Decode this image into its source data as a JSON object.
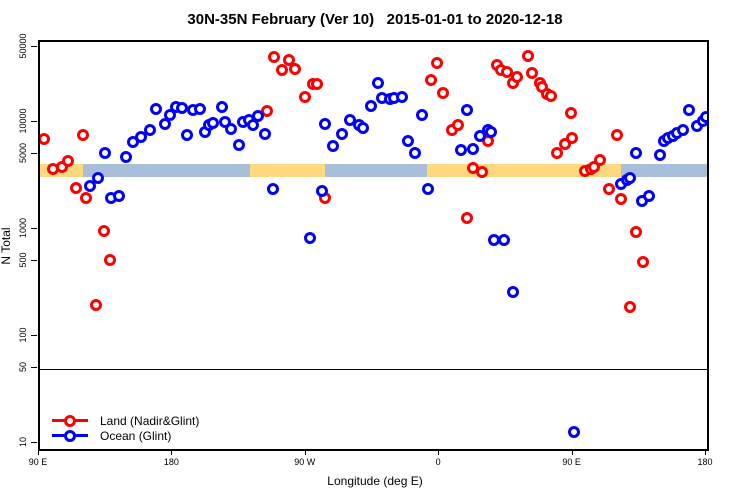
{
  "title": "30N-35N February (Ver 10)   2015-01-01 to 2020-12-18",
  "axes": {
    "x": {
      "label": "Longitude (deg E)",
      "range_deg": [
        90,
        540
      ],
      "note": "longitude axis starts at 90E and wraps eastward past 180, 90W, 0 to 180 again",
      "ticks": [
        {
          "deg": 90,
          "label": "90 E"
        },
        {
          "deg": 180,
          "label": "180"
        },
        {
          "deg": 270,
          "label": "90 W"
        },
        {
          "deg": 360,
          "label": "0"
        },
        {
          "deg": 450,
          "label": "90 E"
        },
        {
          "deg": 540,
          "label": "180"
        }
      ]
    },
    "y": {
      "label": "N Total",
      "scale": "log",
      "range": [
        9,
        57000
      ],
      "ticks": [
        {
          "value": 50000,
          "label": "50000"
        },
        {
          "value": 10000,
          "label": "10000"
        },
        {
          "value": 5000,
          "label": "5000"
        },
        {
          "value": 1000,
          "label": "1000"
        },
        {
          "value": 500,
          "label": "500"
        },
        {
          "value": 100,
          "label": "100"
        },
        {
          "value": 50,
          "label": "50"
        },
        {
          "value": 10,
          "label": "10"
        }
      ]
    }
  },
  "legend": {
    "items": [
      {
        "label": "Land (Nadir&Glint)",
        "color": "#FF0000"
      },
      {
        "label": "Ocean (Glint)",
        "color": "#0000FF"
      }
    ]
  },
  "colors": {
    "land_series": "#FF0000",
    "ocean_series": "#0000FF",
    "land_band": "#FFD97F",
    "ocean_band": "#A9BFD9",
    "reference_line": "#000000"
  },
  "chart_data": {
    "type": "scatter",
    "title": "30N-35N February (Ver 10)   2015-01-01 to 2020-12-18",
    "xlabel": "Longitude (deg E)",
    "ylabel": "N Total",
    "y_scale": "log",
    "ylim": [
      9,
      57000
    ],
    "xlim_deg": [
      90,
      540
    ],
    "grid": false,
    "legend_position": "bottom-left-inside",
    "reference_line_y": 50,
    "surface_band": {
      "y_range": [
        3150,
        4100
      ],
      "segments": [
        {
          "from_deg": 90,
          "to_deg": 119,
          "surface": "land"
        },
        {
          "from_deg": 119,
          "to_deg": 232,
          "surface": "ocean"
        },
        {
          "from_deg": 232,
          "to_deg": 282,
          "surface": "land"
        },
        {
          "from_deg": 282,
          "to_deg": 351,
          "surface": "ocean"
        },
        {
          "from_deg": 351,
          "to_deg": 482,
          "surface": "land"
        },
        {
          "from_deg": 482,
          "to_deg": 540,
          "surface": "ocean"
        }
      ]
    },
    "series": [
      {
        "name": "Land (Nadir&Glint)",
        "color": "#FF0000",
        "points": [
          [
            93,
            7100
          ],
          [
            99,
            3750
          ],
          [
            105,
            3900
          ],
          [
            109,
            4450
          ],
          [
            114,
            2450
          ],
          [
            119,
            7700
          ],
          [
            121,
            1980
          ],
          [
            128,
            200
          ],
          [
            133,
            980
          ],
          [
            137,
            520
          ],
          [
            243,
            13000
          ],
          [
            248,
            41000
          ],
          [
            253,
            31000
          ],
          [
            258,
            38500
          ],
          [
            262,
            31600
          ],
          [
            269,
            17400
          ],
          [
            274,
            23000
          ],
          [
            277,
            23000
          ],
          [
            282,
            1980
          ],
          [
            354,
            25000
          ],
          [
            358,
            36500
          ],
          [
            362,
            19000
          ],
          [
            368,
            8600
          ],
          [
            372,
            9600
          ],
          [
            378,
            1290
          ],
          [
            382,
            3800
          ],
          [
            388,
            3500
          ],
          [
            392,
            6800
          ],
          [
            398,
            34500
          ],
          [
            401,
            31000
          ],
          [
            405,
            29600
          ],
          [
            409,
            23400
          ],
          [
            412,
            26700
          ],
          [
            419,
            42000
          ],
          [
            422,
            29000
          ],
          [
            427,
            23400
          ],
          [
            429,
            21500
          ],
          [
            432,
            18600
          ],
          [
            435,
            17800
          ],
          [
            439,
            5280
          ],
          [
            444,
            6400
          ],
          [
            448,
            12400
          ],
          [
            449,
            7260
          ],
          [
            458,
            3520
          ],
          [
            462,
            3750
          ],
          [
            464,
            3900
          ],
          [
            468,
            4540
          ],
          [
            474,
            2400
          ],
          [
            479,
            7700
          ],
          [
            482,
            1940
          ],
          [
            488,
            190
          ],
          [
            492,
            960
          ],
          [
            497,
            505
          ]
        ]
      },
      {
        "name": "Ocean (Glint)",
        "color": "#0000FF",
        "points": [
          [
            124,
            2600
          ],
          [
            129,
            3030
          ],
          [
            134,
            5280
          ],
          [
            138,
            1980
          ],
          [
            143,
            2070
          ],
          [
            148,
            4840
          ],
          [
            153,
            6670
          ],
          [
            158,
            7400
          ],
          [
            164,
            8600
          ],
          [
            168,
            13500
          ],
          [
            174,
            9800
          ],
          [
            178,
            11900
          ],
          [
            182,
            14000
          ],
          [
            186,
            13800
          ],
          [
            189,
            7700
          ],
          [
            193,
            13200
          ],
          [
            198,
            13500
          ],
          [
            201,
            8260
          ],
          [
            204,
            9570
          ],
          [
            207,
            10000
          ],
          [
            213,
            14000
          ],
          [
            215,
            10200
          ],
          [
            219,
            8800
          ],
          [
            224,
            6250
          ],
          [
            227,
            10200
          ],
          [
            231,
            10650
          ],
          [
            234,
            9570
          ],
          [
            237,
            11600
          ],
          [
            242,
            7900
          ],
          [
            247,
            2400
          ],
          [
            272,
            845
          ],
          [
            280,
            2300
          ],
          [
            282,
            9800
          ],
          [
            288,
            6100
          ],
          [
            294,
            7900
          ],
          [
            299,
            10650
          ],
          [
            305,
            9570
          ],
          [
            308,
            9000
          ],
          [
            313,
            14350
          ],
          [
            318,
            23400
          ],
          [
            321,
            17000
          ],
          [
            326,
            16700
          ],
          [
            329,
            17000
          ],
          [
            334,
            17400
          ],
          [
            338,
            6800
          ],
          [
            343,
            5280
          ],
          [
            348,
            11900
          ],
          [
            352,
            2400
          ],
          [
            374,
            5620
          ],
          [
            378,
            13200
          ],
          [
            382,
            5740
          ],
          [
            387,
            7580
          ],
          [
            392,
            8600
          ],
          [
            394,
            8260
          ],
          [
            396,
            810
          ],
          [
            403,
            800
          ],
          [
            409,
            265
          ],
          [
            450,
            13
          ],
          [
            482,
            2670
          ],
          [
            486,
            2960
          ],
          [
            488,
            3030
          ],
          [
            492,
            5280
          ],
          [
            496,
            1860
          ],
          [
            501,
            2070
          ],
          [
            508,
            5060
          ],
          [
            511,
            6800
          ],
          [
            514,
            7300
          ],
          [
            517,
            7500
          ],
          [
            520,
            8100
          ],
          [
            524,
            8600
          ],
          [
            528,
            13200
          ],
          [
            533,
            9400
          ],
          [
            537,
            10400
          ],
          [
            539,
            11400
          ]
        ]
      }
    ]
  }
}
